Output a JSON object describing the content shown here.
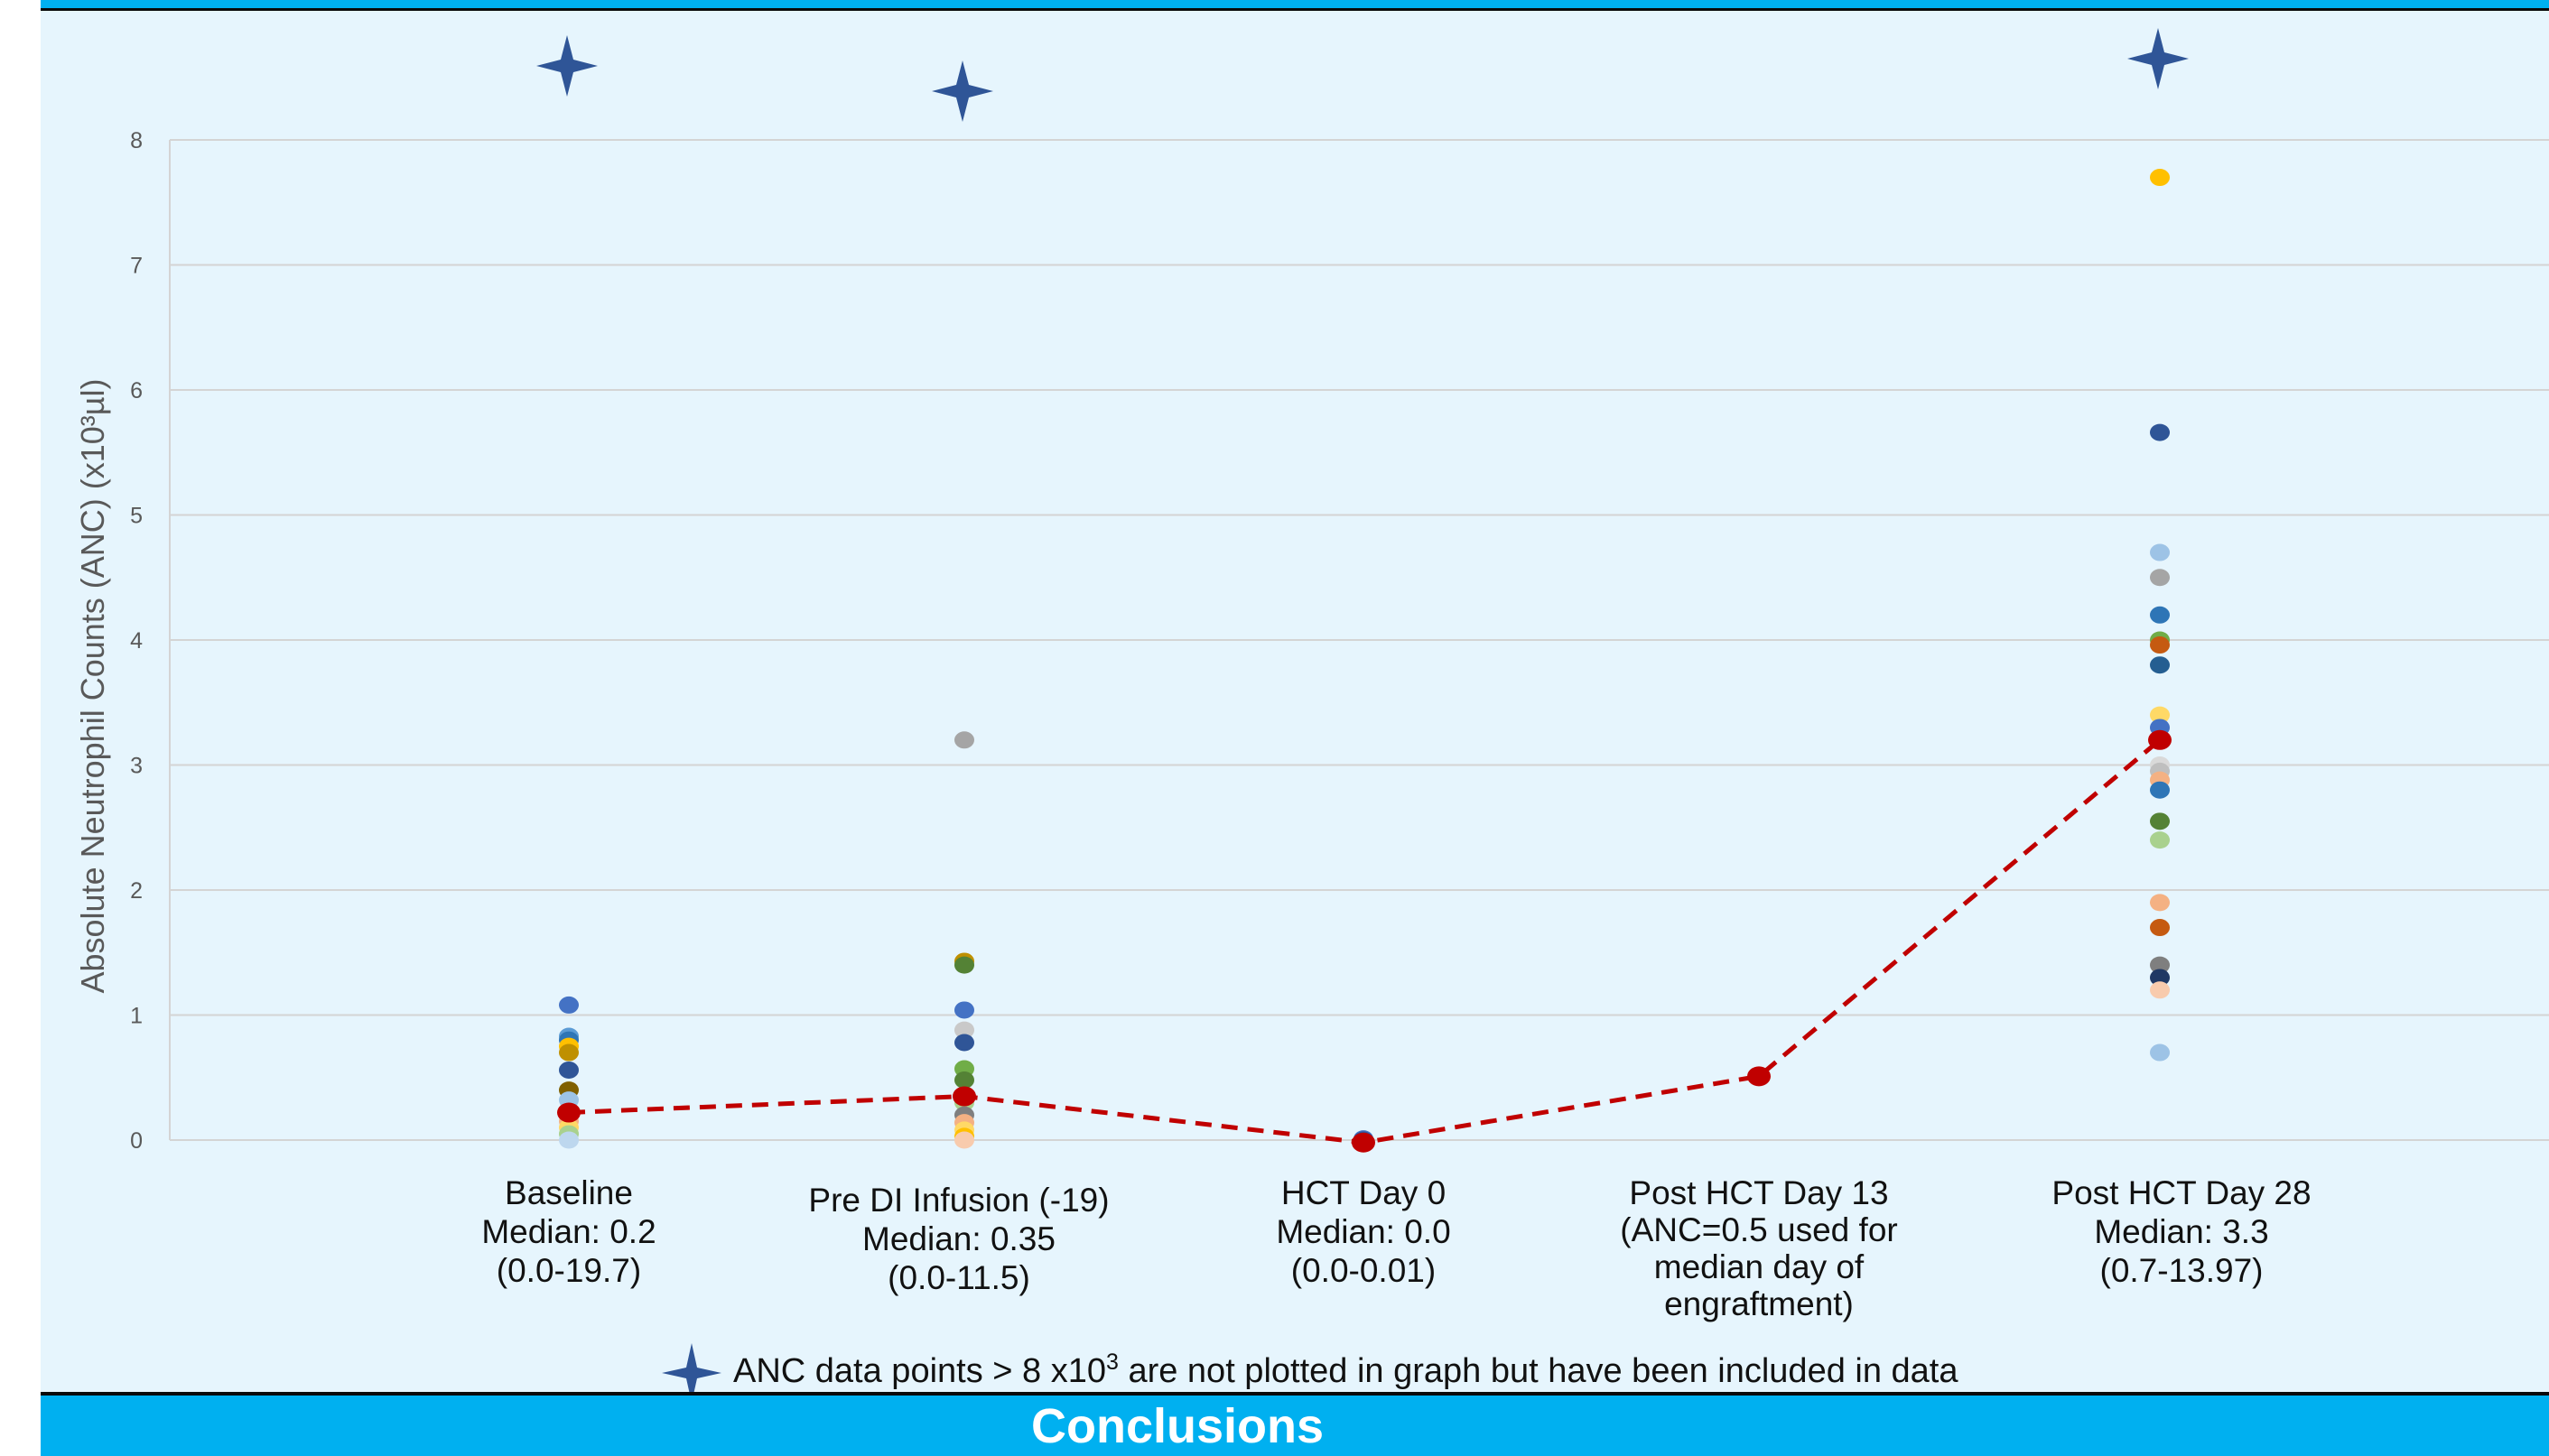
{
  "colors": {
    "panel_bg": "#e6f5fd",
    "header_bar": "#00b0f0",
    "median_line": "#c00000",
    "star": "#2f5597",
    "grid": "#d4d4d4"
  },
  "footer": {
    "title": "Conclusions"
  },
  "note": {
    "icon": "four-point-star-icon",
    "text_before": "ANC data points > 8 x10",
    "superscript": "3",
    "text_after": " are not plotted in graph but have been included in data"
  },
  "chart_data": {
    "type": "scatter",
    "ylabel": "Absolute Neutrophil Counts (ANC) (x10³µl)",
    "ylim": [
      0,
      8
    ],
    "yticks": [
      "0",
      "1",
      "2",
      "3",
      "4",
      "5",
      "6",
      "7",
      "8"
    ],
    "grid": true,
    "categories": [
      {
        "lines": [
          "Baseline",
          "Median: 0.2",
          "(0.0-19.7)"
        ]
      },
      {
        "lines": [
          "Pre DI Infusion (-19)",
          "Median: 0.35",
          "(0.0-11.5)"
        ]
      },
      {
        "lines": [
          "HCT Day 0",
          "Median: 0.0",
          "(0.0-0.01)"
        ]
      },
      {
        "lines": [
          "Post HCT Day 13",
          "(ANC=0.5 used for",
          "median day of",
          "engraftment)"
        ]
      },
      {
        "lines": [
          "Post HCT Day 28",
          "Median: 3.3",
          "(0.7-13.97)"
        ]
      }
    ],
    "point_series": [
      {
        "category": 0,
        "points": [
          {
            "y": 1.08,
            "color": "#4472c4"
          },
          {
            "y": 0.83,
            "color": "#5b9bd5"
          },
          {
            "y": 0.8,
            "color": "#2e75b6"
          },
          {
            "y": 0.75,
            "color": "#ffc000"
          },
          {
            "y": 0.7,
            "color": "#bf9000"
          },
          {
            "y": 0.56,
            "color": "#2f5597"
          },
          {
            "y": 0.4,
            "color": "#806000"
          },
          {
            "y": 0.32,
            "color": "#9dc3e6"
          },
          {
            "y": 0.15,
            "color": "#f4b183"
          },
          {
            "y": 0.1,
            "color": "#ffd966"
          },
          {
            "y": 0.05,
            "color": "#a9d18e"
          },
          {
            "y": 0.0,
            "color": "#bdd7ee"
          }
        ]
      },
      {
        "category": 1,
        "points": [
          {
            "y": 3.2,
            "color": "#a5a5a5"
          },
          {
            "y": 1.43,
            "color": "#bf9000"
          },
          {
            "y": 1.4,
            "color": "#548235"
          },
          {
            "y": 1.04,
            "color": "#4472c4"
          },
          {
            "y": 0.88,
            "color": "#c9c9c9"
          },
          {
            "y": 0.78,
            "color": "#2f5597"
          },
          {
            "y": 0.57,
            "color": "#70ad47"
          },
          {
            "y": 0.48,
            "color": "#548235"
          },
          {
            "y": 0.3,
            "color": "#a9d18e"
          },
          {
            "y": 0.2,
            "color": "#7f7f7f"
          },
          {
            "y": 0.14,
            "color": "#f4b183"
          },
          {
            "y": 0.08,
            "color": "#ffd966"
          },
          {
            "y": 0.03,
            "color": "#ffc000"
          },
          {
            "y": 0.0,
            "color": "#f8cbad"
          }
        ]
      },
      {
        "category": 2,
        "points": [
          {
            "y": 0.01,
            "color": "#4472c4"
          },
          {
            "y": 0.0,
            "color": "#2f5597"
          }
        ]
      },
      {
        "category": 4,
        "points": [
          {
            "y": 7.7,
            "color": "#ffc000"
          },
          {
            "y": 5.66,
            "color": "#2f5597"
          },
          {
            "y": 4.7,
            "color": "#9dc3e6"
          },
          {
            "y": 4.5,
            "color": "#a5a5a5"
          },
          {
            "y": 4.2,
            "color": "#2e75b6"
          },
          {
            "y": 4.0,
            "color": "#70ad47"
          },
          {
            "y": 3.96,
            "color": "#c55a11"
          },
          {
            "y": 3.8,
            "color": "#255e91"
          },
          {
            "y": 3.4,
            "color": "#ffd966"
          },
          {
            "y": 3.3,
            "color": "#4472c4"
          },
          {
            "y": 3.0,
            "color": "#d9d9d9"
          },
          {
            "y": 2.95,
            "color": "#bfbfbf"
          },
          {
            "y": 2.88,
            "color": "#f4b183"
          },
          {
            "y": 2.8,
            "color": "#2e75b6"
          },
          {
            "y": 2.55,
            "color": "#548235"
          },
          {
            "y": 2.4,
            "color": "#a9d18e"
          },
          {
            "y": 1.9,
            "color": "#f4b183"
          },
          {
            "y": 1.7,
            "color": "#c55a11"
          },
          {
            "y": 1.4,
            "color": "#7f7f7f"
          },
          {
            "y": 1.3,
            "color": "#1f3864"
          },
          {
            "y": 1.2,
            "color": "#f8cbad"
          },
          {
            "y": 0.7,
            "color": "#9dc3e6"
          }
        ]
      }
    ],
    "median_series": {
      "line_style": "dashed",
      "values": [
        0.22,
        0.35,
        -0.02,
        0.51,
        3.2
      ]
    },
    "above_range_markers": [
      {
        "category": 0,
        "icon": "four-point-star-icon"
      },
      {
        "category": 1,
        "icon": "four-point-star-icon"
      },
      {
        "category": 4,
        "icon": "four-point-star-icon"
      }
    ]
  }
}
